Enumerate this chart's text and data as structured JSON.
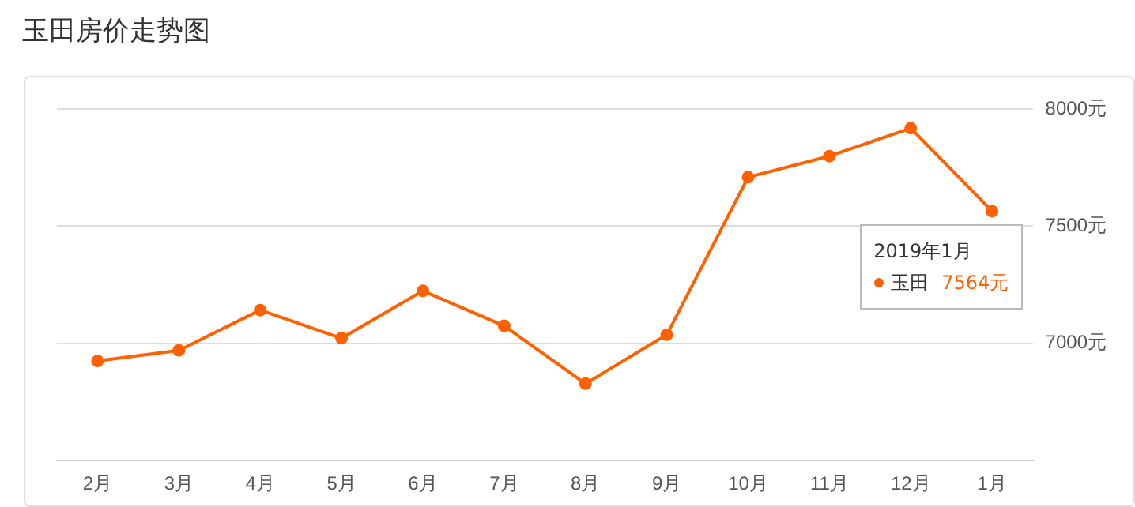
{
  "chart_data": {
    "type": "line",
    "title": "玉田房价走势图",
    "categories": [
      "2月",
      "3月",
      "4月",
      "5月",
      "6月",
      "7月",
      "8月",
      "9月",
      "10月",
      "11月",
      "12月",
      "1月"
    ],
    "series": [
      {
        "name": "玉田",
        "color": "#ff6000",
        "values": [
          6925,
          6970,
          7142,
          7022,
          7224,
          7075,
          6828,
          7037,
          7709,
          7799,
          7918,
          7564
        ],
        "value_labels": [
          null,
          null,
          null,
          null,
          null,
          null,
          null,
          null,
          null,
          null,
          null,
          "7564元"
        ]
      }
    ],
    "annotations": [
      {
        "text": "2019年1月",
        "x": "1月",
        "y": 7564
      }
    ],
    "ylim": [
      6500,
      8000
    ],
    "yticks": [
      {
        "value": 7000,
        "label": "7000元"
      },
      {
        "value": 7500,
        "label": "7500元"
      },
      {
        "value": 8000,
        "label": "8000元"
      }
    ],
    "grid": "y",
    "legend": "right",
    "marker": "circle",
    "line_style": "solid"
  }
}
